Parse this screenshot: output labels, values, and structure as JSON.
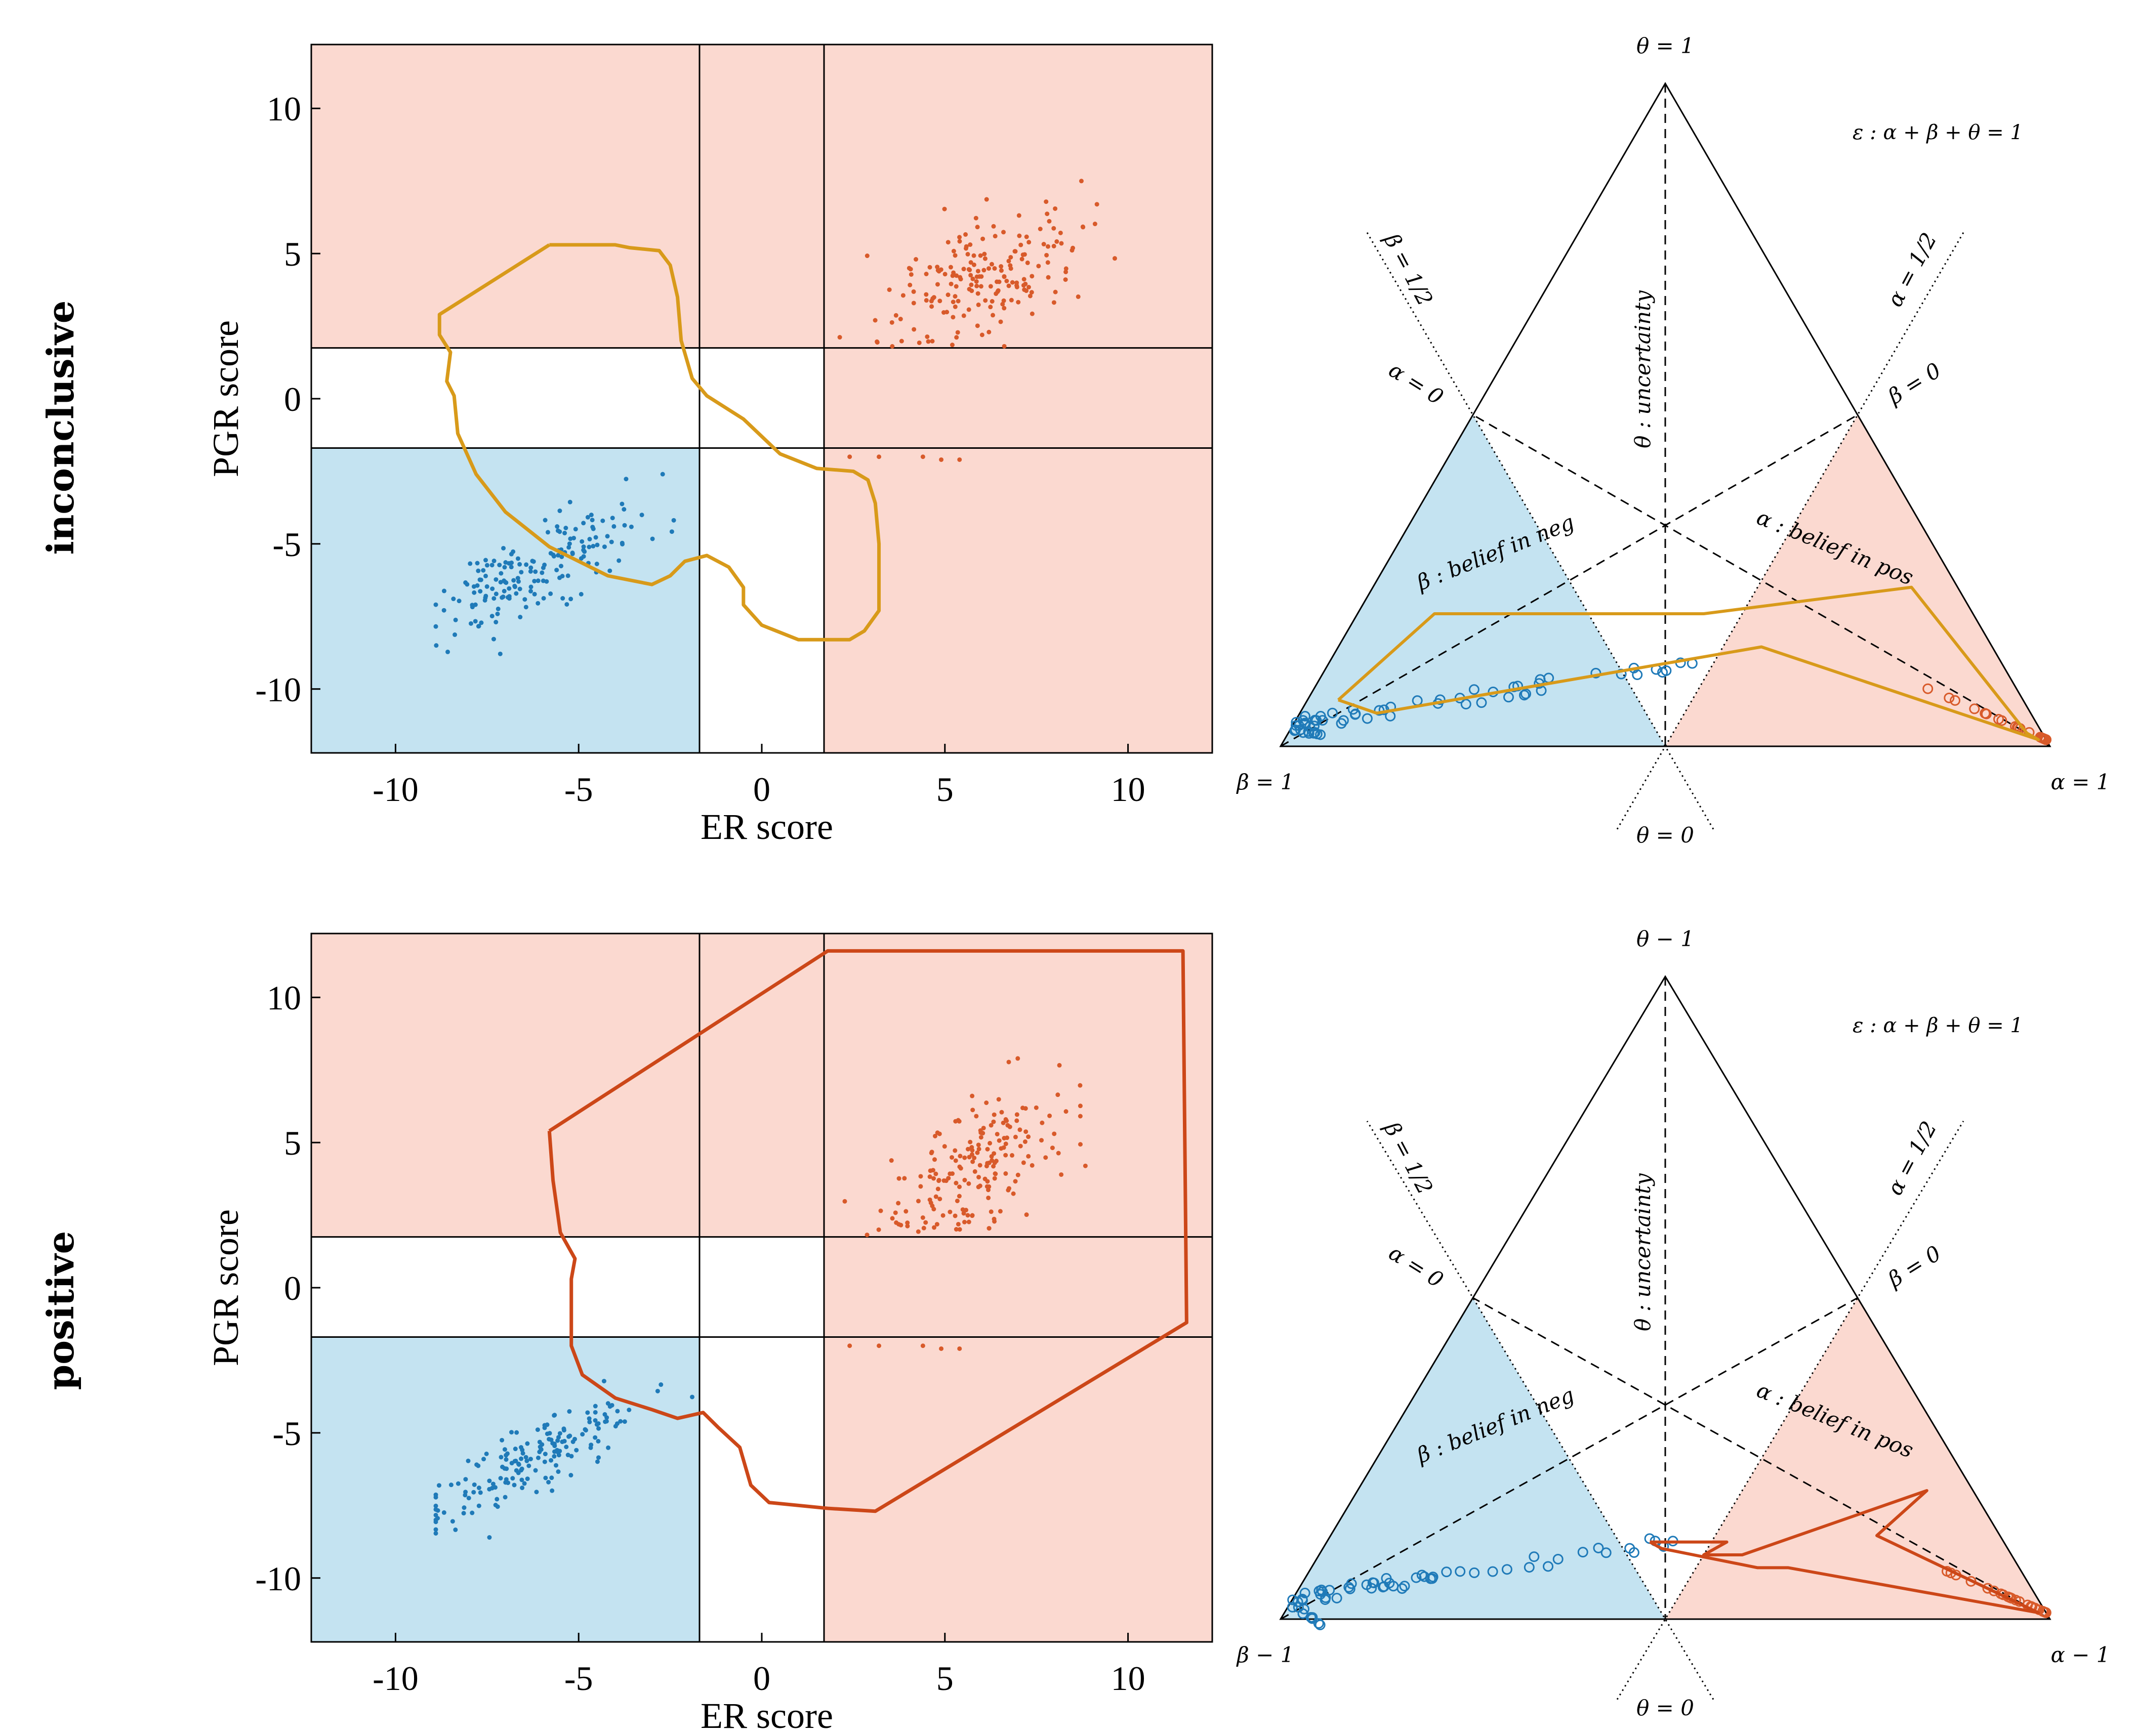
{
  "colors": {
    "pos_region": "#fbd9d0",
    "neg_region": "#c4e3f1",
    "pos_points": "#d85a2a",
    "neg_points": "#1f7ab8",
    "inconclusive_contour": "#d89a1a",
    "positive_contour": "#cc4718"
  },
  "rows": [
    {
      "label": "inconclusive"
    },
    {
      "label": "positive"
    }
  ],
  "triangle_labels": {
    "theta1": "θ = 1",
    "theta0": "θ = 0",
    "beta1": "β = 1",
    "alpha1": "α = 1",
    "epsilon": "ε : α + β + θ = 1",
    "beta_half": "β = 1/2",
    "alpha_half": "α = 1/2",
    "alpha0": "α = 0",
    "beta0": "β = 0",
    "uncertainty": "θ : uncertainty",
    "belief_neg": "β : belief in neg",
    "belief_pos": "α : belief in pos"
  },
  "triangle_labels_bottom": {
    "theta1": "θ − 1",
    "beta1": "β − 1",
    "alpha1": "α − 1"
  },
  "chart_data": [
    {
      "type": "scatter",
      "panel": "inconclusive-scatter",
      "xlabel": "ER score",
      "ylabel": "PGR score",
      "xlim": [
        -12.3,
        12.3
      ],
      "ylim": [
        -12.2,
        12.2
      ],
      "xticks": [
        -10,
        -5,
        0,
        5,
        10
      ],
      "yticks": [
        10,
        5,
        0,
        -5,
        -10
      ],
      "threshold_x": [
        -1.7,
        1.7
      ],
      "threshold_y": [
        1.75,
        -1.7
      ],
      "contour_name": "inconclusive",
      "contour": [
        [
          -5.8,
          5.3
        ],
        [
          -4,
          5.3
        ],
        [
          -3.6,
          5.2
        ],
        [
          -2.8,
          5.1
        ],
        [
          -2.5,
          4.6
        ],
        [
          -2.3,
          3.5
        ],
        [
          -2.2,
          2
        ],
        [
          -1.9,
          0.7
        ],
        [
          -1.5,
          0.1
        ],
        [
          -0.5,
          -0.7
        ],
        [
          0.5,
          -1.9
        ],
        [
          1.5,
          -2.4
        ],
        [
          2.5,
          -2.5
        ],
        [
          2.9,
          -2.8
        ],
        [
          3.1,
          -3.6
        ],
        [
          3.2,
          -5
        ],
        [
          3.2,
          -7.3
        ],
        [
          2.8,
          -8
        ],
        [
          2.4,
          -8.3
        ],
        [
          1,
          -8.3
        ],
        [
          0,
          -7.8
        ],
        [
          -0.5,
          -7.1
        ],
        [
          -0.5,
          -6.5
        ],
        [
          -0.9,
          -5.8
        ],
        [
          -1.5,
          -5.4
        ],
        [
          -2.1,
          -5.6
        ],
        [
          -2.5,
          -6.1
        ],
        [
          -3,
          -6.4
        ],
        [
          -4.2,
          -6.1
        ],
        [
          -5.8,
          -5.1
        ],
        [
          -7,
          -3.9
        ],
        [
          -7.8,
          -2.6
        ],
        [
          -8.3,
          -1.2
        ],
        [
          -8.4,
          0.1
        ],
        [
          -8.6,
          0.6
        ],
        [
          -8.5,
          1.6
        ],
        [
          -8.8,
          2.2
        ],
        [
          -8.8,
          2.9
        ],
        [
          -5.8,
          5.3
        ]
      ]
    },
    {
      "type": "scatter",
      "panel": "positive-scatter",
      "xlabel": "ER score",
      "ylabel": "PGR score",
      "xlim": [
        -12.3,
        12.3
      ],
      "ylim": [
        -12.2,
        12.2
      ],
      "xticks": [
        -10,
        -5,
        0,
        5,
        10
      ],
      "yticks": [
        10,
        5,
        0,
        -5,
        -10
      ],
      "threshold_x": [
        -1.7,
        1.7
      ],
      "threshold_y": [
        1.75,
        -1.7
      ],
      "contour_name": "positive",
      "contour": [
        [
          -5.8,
          5.4
        ],
        [
          1.8,
          11.6
        ],
        [
          11.5,
          11.6
        ],
        [
          11.6,
          -1.2
        ],
        [
          3.1,
          -7.7
        ],
        [
          1.8,
          -7.6
        ],
        [
          0.2,
          -7.4
        ],
        [
          -0.3,
          -6.8
        ],
        [
          -0.6,
          -5.5
        ],
        [
          -1.2,
          -4.8
        ],
        [
          -1.6,
          -4.3
        ],
        [
          -2.3,
          -4.5
        ],
        [
          -3,
          -4.2
        ],
        [
          -4,
          -3.8
        ],
        [
          -4.9,
          -3
        ],
        [
          -5.2,
          -2
        ],
        [
          -5.2,
          0.3
        ],
        [
          -5.1,
          1
        ],
        [
          -5.5,
          1.9
        ],
        [
          -5.7,
          3.7
        ],
        [
          -5.8,
          5.4
        ]
      ]
    },
    {
      "type": "ternary",
      "panel": "inconclusive-simplex",
      "contour_name": "inconclusive",
      "contour": [
        [
          0.04,
          0.89,
          0.07
        ],
        [
          0.1,
          0.7,
          0.2
        ],
        [
          0.45,
          0.35,
          0.2
        ],
        [
          0.7,
          0.06,
          0.24
        ],
        [
          0.96,
          0.02,
          0.02
        ],
        [
          0.98,
          0.01,
          0.01
        ],
        [
          0.55,
          0.3,
          0.15
        ],
        [
          0.1,
          0.85,
          0.05
        ],
        [
          0.04,
          0.89,
          0.07
        ]
      ]
    },
    {
      "type": "ternary",
      "panel": "positive-simplex",
      "contour_name": "positive",
      "contour": [
        [
          0.42,
          0.46,
          0.12
        ],
        [
          0.52,
          0.36,
          0.12
        ],
        [
          0.5,
          0.4,
          0.1
        ],
        [
          0.55,
          0.35,
          0.1
        ],
        [
          0.74,
          0.06,
          0.2
        ],
        [
          0.71,
          0.16,
          0.13
        ],
        [
          0.98,
          0.01,
          0.01
        ],
        [
          0.62,
          0.3,
          0.08
        ],
        [
          0.58,
          0.34,
          0.08
        ],
        [
          0.44,
          0.45,
          0.11
        ],
        [
          0.42,
          0.46,
          0.12
        ]
      ]
    }
  ]
}
